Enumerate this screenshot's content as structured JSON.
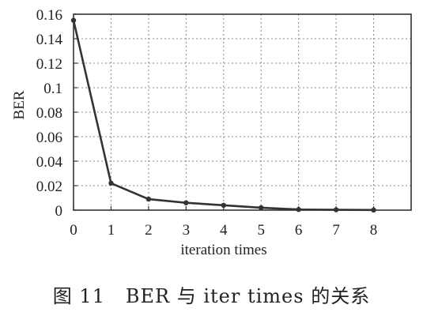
{
  "chart_data": {
    "type": "line",
    "x": [
      0,
      1,
      2,
      3,
      4,
      5,
      6,
      7,
      8
    ],
    "series": [
      {
        "values": [
          0.155,
          0.022,
          0.009,
          0.006,
          0.004,
          0.002,
          0.0005,
          0.0003,
          0.0001
        ]
      }
    ],
    "title": "",
    "xlabel": "iteration times",
    "ylabel": "BER",
    "xlim": [
      0,
      9
    ],
    "ylim": [
      0,
      0.16
    ],
    "x_ticks": [
      "0",
      "1",
      "2",
      "3",
      "4",
      "5",
      "6",
      "7",
      "8"
    ],
    "y_ticks": [
      "0",
      "0.02",
      "0.04",
      "0.06",
      "0.08",
      "0.1",
      "0.12",
      "0.14",
      "0.16"
    ],
    "grid": true,
    "line_color": "#333333",
    "grid_color": "#888888"
  },
  "caption": {
    "figure_number": "图 11",
    "text": "BER 与 iter times 的关系"
  }
}
